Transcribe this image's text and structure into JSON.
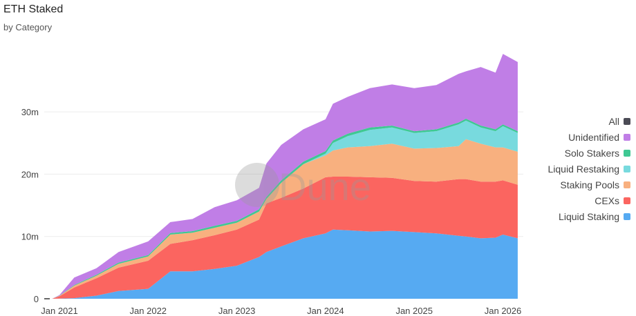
{
  "header": {
    "title": "ETH Staked",
    "subtitle": "by Category"
  },
  "watermark": "Dune",
  "chart_data": {
    "type": "area",
    "stacked": true,
    "title": "ETH Staked",
    "subtitle": "by Category",
    "xlabel": "",
    "ylabel": "",
    "ylim": [
      0,
      42
    ],
    "grid": true,
    "legend_position": "right",
    "x_ticks": [
      "Jan 2021",
      "Jan 2022",
      "Jan 2023",
      "Jan 2024",
      "Jan 2025",
      "Jan 2026"
    ],
    "y_ticks": [
      "0",
      "10m",
      "20m",
      "30m"
    ],
    "y_tick_values": [
      0,
      10,
      20,
      30
    ],
    "legend": [
      {
        "name": "All",
        "color": "#4b4b55"
      },
      {
        "name": "Unidentified",
        "color": "#c07ee6"
      },
      {
        "name": "Solo Stakers",
        "color": "#3fc893"
      },
      {
        "name": "Liquid Restaking",
        "color": "#78dade"
      },
      {
        "name": "Staking Pools",
        "color": "#f8b07f"
      },
      {
        "name": "CEXs",
        "color": "#fb6560"
      },
      {
        "name": "Liquid Staking",
        "color": "#56aaf2"
      }
    ],
    "x": [
      "2020-12",
      "2021-01",
      "2021-03",
      "2021-06",
      "2021-09",
      "2022-01",
      "2022-04",
      "2022-07",
      "2022-10",
      "2023-01",
      "2023-04",
      "2023-05",
      "2023-07",
      "2023-10",
      "2024-01",
      "2024-02",
      "2024-04",
      "2024-07",
      "2024-10",
      "2025-01",
      "2025-04",
      "2025-07",
      "2025-08",
      "2025-10",
      "2025-12",
      "2026-01",
      "2026-03"
    ],
    "units": "million ETH",
    "series": [
      {
        "name": "Liquid Staking",
        "color": "#56aaf2",
        "values": [
          0,
          0.02,
          0.1,
          0.5,
          1.25,
          1.6,
          4.4,
          4.4,
          4.8,
          5.3,
          6.7,
          7.5,
          8.4,
          9.7,
          10.5,
          11.1,
          11.0,
          10.8,
          10.9,
          10.7,
          10.5,
          10.1,
          10.0,
          9.7,
          9.8,
          10.3,
          9.7
        ]
      },
      {
        "name": "CEXs",
        "color": "#fb6560",
        "values": [
          0,
          0.38,
          1.7,
          2.8,
          3.75,
          4.5,
          4.4,
          5.0,
          5.4,
          5.8,
          6.0,
          7.8,
          7.8,
          8.0,
          9.0,
          8.5,
          8.6,
          8.7,
          8.5,
          8.2,
          8.3,
          9.1,
          9.2,
          9.1,
          9.0,
          8.7,
          8.6
        ]
      },
      {
        "name": "Staking Pools",
        "color": "#f8b07f",
        "values": [
          0,
          0.05,
          0.3,
          0.4,
          0.6,
          0.7,
          1.5,
          1.2,
          1.2,
          1.1,
          1.3,
          0.7,
          2.4,
          3.9,
          3.5,
          4.2,
          4.7,
          5.0,
          5.5,
          5.2,
          5.4,
          5.3,
          6.4,
          6.1,
          5.5,
          5.3,
          5.3
        ]
      },
      {
        "name": "Liquid Restaking",
        "color": "#78dade",
        "values": [
          0,
          0,
          0,
          0,
          0,
          0,
          0,
          0,
          0,
          0,
          0,
          0,
          0,
          0,
          0.3,
          1.2,
          1.8,
          2.6,
          2.6,
          2.5,
          2.7,
          3.5,
          3.0,
          2.6,
          2.6,
          3.4,
          3.0
        ]
      },
      {
        "name": "Solo Stakers",
        "color": "#3fc893",
        "values": [
          0,
          0.05,
          0.1,
          0.15,
          0.2,
          0.2,
          0.25,
          0.25,
          0.3,
          0.3,
          0.35,
          0.35,
          0.4,
          0.4,
          0.4,
          0.4,
          0.4,
          0.4,
          0.3,
          0.3,
          0.3,
          0.3,
          0.3,
          0.3,
          0.3,
          0.3,
          0.3
        ]
      },
      {
        "name": "Unidentified",
        "color": "#c07ee6",
        "values": [
          0,
          0.1,
          1.2,
          1.05,
          1.7,
          2.2,
          1.75,
          1.95,
          3.0,
          3.3,
          3.45,
          5.35,
          5.7,
          5.2,
          5.1,
          5.9,
          5.9,
          6.3,
          6.6,
          6.9,
          7.1,
          7.8,
          7.6,
          9.4,
          9.1,
          11.3,
          11.1
        ]
      }
    ]
  }
}
